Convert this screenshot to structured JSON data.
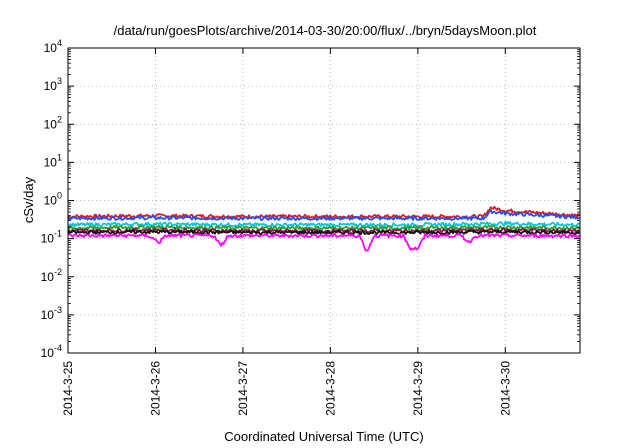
{
  "chart_data": {
    "type": "line",
    "title": "/data/run/goesPlots/archive/2014-03-30/20:00/flux/../bryn/5daysMoon.plot",
    "xlabel": "Coordinated Universal Time (UTC)",
    "ylabel": "cSv/day",
    "yscale": "log",
    "ylim": [
      0.0001,
      10000
    ],
    "xlim": [
      "2014-03-25",
      "2014-03-30 20:30"
    ],
    "grid": true,
    "yticks": [
      {
        "base": "10",
        "exp": "-4"
      },
      {
        "base": "10",
        "exp": "-3"
      },
      {
        "base": "10",
        "exp": "-2"
      },
      {
        "base": "10",
        "exp": "-1"
      },
      {
        "base": "10",
        "exp": "0"
      },
      {
        "base": "10",
        "exp": "1"
      },
      {
        "base": "10",
        "exp": "2"
      },
      {
        "base": "10",
        "exp": "3"
      },
      {
        "base": "10",
        "exp": "4"
      }
    ],
    "xticks": [
      "2014-3-25",
      "2014-3-26",
      "2014-3-27",
      "2014-3-28",
      "2014-3-29",
      "2014-3-30"
    ],
    "series": [
      {
        "color": "#e41a1c",
        "points": [
          [
            "2014-03-25",
            0.38
          ],
          [
            "2014-03-26",
            0.4
          ],
          [
            "2014-03-27",
            0.38
          ],
          [
            "2014-03-28",
            0.38
          ],
          [
            "2014-03-29",
            0.38
          ],
          [
            "2014-03-29 18:00",
            0.38
          ],
          [
            "2014-03-29 20:00",
            0.65
          ],
          [
            "2014-03-30",
            0.55
          ],
          [
            "2014-03-30 20:30",
            0.4
          ]
        ]
      },
      {
        "color": "#1f4fff",
        "points": [
          [
            "2014-03-25",
            0.34
          ],
          [
            "2014-03-26",
            0.35
          ],
          [
            "2014-03-27",
            0.34
          ],
          [
            "2014-03-28",
            0.34
          ],
          [
            "2014-03-29",
            0.34
          ],
          [
            "2014-03-29 18:00",
            0.34
          ],
          [
            "2014-03-29 20:00",
            0.52
          ],
          [
            "2014-03-30",
            0.46
          ],
          [
            "2014-03-30 20:30",
            0.36
          ]
        ]
      },
      {
        "color": "#00c8d8",
        "points": [
          [
            "2014-03-25",
            0.23
          ],
          [
            "2014-03-26",
            0.24
          ],
          [
            "2014-03-27",
            0.23
          ],
          [
            "2014-03-28",
            0.23
          ],
          [
            "2014-03-29",
            0.23
          ],
          [
            "2014-03-30",
            0.25
          ],
          [
            "2014-03-30 20:30",
            0.23
          ]
        ]
      },
      {
        "color": "#2ca02c",
        "points": [
          [
            "2014-03-25",
            0.19
          ],
          [
            "2014-03-26",
            0.2
          ],
          [
            "2014-03-27",
            0.19
          ],
          [
            "2014-03-28",
            0.19
          ],
          [
            "2014-03-29",
            0.19
          ],
          [
            "2014-03-30",
            0.2
          ],
          [
            "2014-03-30 20:30",
            0.19
          ]
        ]
      },
      {
        "color": "#8b1a4a",
        "points": [
          [
            "2014-03-25",
            0.16
          ],
          [
            "2014-03-26",
            0.17
          ],
          [
            "2014-03-27",
            0.16
          ],
          [
            "2014-03-28",
            0.16
          ],
          [
            "2014-03-29",
            0.16
          ],
          [
            "2014-03-30",
            0.17
          ],
          [
            "2014-03-30 20:30",
            0.16
          ]
        ]
      },
      {
        "color": "#111111",
        "points": [
          [
            "2014-03-25",
            0.145
          ],
          [
            "2014-03-26",
            0.15
          ],
          [
            "2014-03-27",
            0.145
          ],
          [
            "2014-03-28",
            0.145
          ],
          [
            "2014-03-29",
            0.145
          ],
          [
            "2014-03-30",
            0.15
          ],
          [
            "2014-03-30 20:30",
            0.145
          ]
        ]
      },
      {
        "color": "#ff00ff",
        "points": [
          [
            "2014-03-25",
            0.12
          ],
          [
            "2014-03-25 22:00",
            0.12
          ],
          [
            "2014-03-26 01:00",
            0.08
          ],
          [
            "2014-03-26 03:00",
            0.12
          ],
          [
            "2014-03-26 16:00",
            0.12
          ],
          [
            "2014-03-26 18:00",
            0.065
          ],
          [
            "2014-03-26 20:00",
            0.12
          ],
          [
            "2014-03-28",
            0.12
          ],
          [
            "2014-03-28 08:00",
            0.12
          ],
          [
            "2014-03-28 10:00",
            0.045
          ],
          [
            "2014-03-28 12:00",
            0.12
          ],
          [
            "2014-03-28 20:00",
            0.12
          ],
          [
            "2014-03-28 22:00",
            0.055
          ],
          [
            "2014-03-29 00:00",
            0.055
          ],
          [
            "2014-03-29 02:00",
            0.12
          ],
          [
            "2014-03-29 12:00",
            0.12
          ],
          [
            "2014-03-29 14:00",
            0.08
          ],
          [
            "2014-03-29 16:00",
            0.12
          ],
          [
            "2014-03-30 20:30",
            0.12
          ]
        ]
      }
    ]
  }
}
